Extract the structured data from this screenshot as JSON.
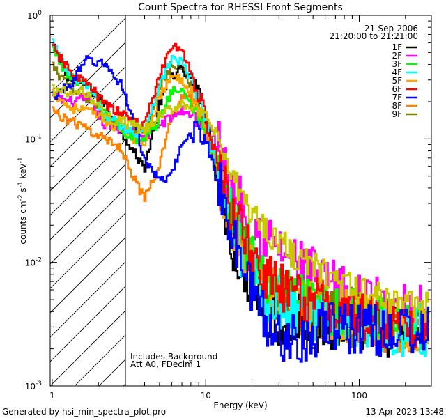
{
  "chart_data": {
    "type": "line",
    "title": "Count Spectra for RHESSI Front Segments",
    "xlabel": "Energy (keV)",
    "ylabel": "counts cm-2 s-1 keV-1",
    "xscale": "log",
    "yscale": "log",
    "xlim": [
      0.97,
      295
    ],
    "ylim": [
      0.001,
      1.0
    ],
    "x_ticks": [
      {
        "value": 1,
        "label": "1"
      },
      {
        "value": 10,
        "label": "10"
      },
      {
        "value": 100,
        "label": "100"
      }
    ],
    "y_ticks": [
      {
        "value": 1,
        "base": "10",
        "exp": "0"
      },
      {
        "value": 0.1,
        "base": "10",
        "exp": "-1"
      },
      {
        "value": 0.01,
        "base": "10",
        "exp": "-2"
      },
      {
        "value": 0.001,
        "base": "10",
        "exp": "-3"
      }
    ],
    "shaded_region": {
      "x_from": 0.97,
      "x_to": 3.0,
      "style": "hatched"
    },
    "legend_header": [
      "21-Sep-2006",
      "21:20:00 to 21:21:00"
    ],
    "series": [
      {
        "name": "1F",
        "color": "#000000",
        "values": [
          0.58,
          0.3,
          0.27,
          0.19,
          0.12,
          0.078,
          0.058,
          0.19,
          0.33,
          0.36,
          0.3,
          0.23,
          0.15,
          0.05,
          0.014,
          0.0065,
          0.004,
          0.003,
          0.0035,
          0.003,
          0.003,
          0.003,
          0.0028,
          0.0028
        ]
      },
      {
        "name": "2F",
        "color": "#ff00ff",
        "values": [
          0.22,
          0.2,
          0.21,
          0.13,
          0.12,
          0.11,
          0.1,
          0.13,
          0.15,
          0.17,
          0.16,
          0.14,
          0.13,
          0.09,
          0.04,
          0.022,
          0.016,
          0.012,
          0.0095,
          0.0075,
          0.006,
          0.005,
          0.0045,
          0.004
        ]
      },
      {
        "name": "3F",
        "color": "#00ff00",
        "values": [
          0.55,
          0.31,
          0.28,
          0.17,
          0.12,
          0.1,
          0.095,
          0.14,
          0.25,
          0.24,
          0.2,
          0.15,
          0.11,
          0.06,
          0.022,
          0.011,
          0.007,
          0.0055,
          0.005,
          0.0042,
          0.004,
          0.0036,
          0.0034,
          0.0032
        ]
      },
      {
        "name": "4F",
        "color": "#00ffff",
        "values": [
          0.63,
          0.32,
          0.27,
          0.16,
          0.13,
          0.11,
          0.12,
          0.27,
          0.45,
          0.42,
          0.3,
          0.21,
          0.14,
          0.055,
          0.018,
          0.0085,
          0.0055,
          0.0045,
          0.004,
          0.0036,
          0.0034,
          0.0032,
          0.003,
          0.0028
        ]
      },
      {
        "name": "5F",
        "color": "#ffa500",
        "values": [
          0.24,
          0.18,
          0.17,
          0.14,
          0.12,
          0.1,
          0.095,
          0.22,
          0.32,
          0.3,
          0.25,
          0.18,
          0.12,
          0.055,
          0.02,
          0.01,
          0.0065,
          0.0052,
          0.0046,
          0.0042,
          0.0038,
          0.0034,
          0.0031,
          0.0029
        ]
      },
      {
        "name": "6F",
        "color": "#ff0000",
        "values": [
          0.56,
          0.35,
          0.28,
          0.19,
          0.16,
          0.14,
          0.13,
          0.32,
          0.57,
          0.52,
          0.35,
          0.23,
          0.15,
          0.062,
          0.024,
          0.012,
          0.0075,
          0.0058,
          0.005,
          0.0045,
          0.004,
          0.0036,
          0.0033,
          0.0031
        ]
      },
      {
        "name": "7F",
        "color": "#0000ff",
        "values": [
          0.22,
          0.27,
          0.44,
          0.4,
          0.28,
          0.14,
          0.07,
          0.045,
          0.05,
          0.09,
          0.11,
          0.12,
          0.1,
          0.048,
          0.015,
          0.006,
          0.0032,
          0.0025,
          0.0025,
          0.0028,
          0.003,
          0.003,
          0.0028,
          0.0028
        ]
      },
      {
        "name": "8F",
        "color": "#ff8000",
        "values": [
          0.17,
          0.14,
          0.12,
          0.1,
          0.085,
          0.05,
          0.032,
          0.06,
          0.15,
          0.23,
          0.22,
          0.16,
          0.12,
          0.05,
          0.018,
          0.009,
          0.006,
          0.0048,
          0.0042,
          0.004,
          0.0036,
          0.0033,
          0.0031,
          0.0029
        ]
      },
      {
        "name": "9F",
        "color": "#808000",
        "values": [
          0.39,
          0.26,
          0.21,
          0.15,
          0.13,
          0.12,
          0.11,
          0.26,
          0.4,
          0.38,
          0.27,
          0.19,
          0.13,
          0.058,
          0.02,
          0.01,
          0.0065,
          0.005,
          0.0045,
          0.004,
          0.0036,
          0.0033,
          0.0031,
          0.0029
        ]
      }
    ],
    "x": [
      1.0,
      1.3,
      1.7,
      2.2,
      2.8,
      3.4,
      4.0,
      5.0,
      6.0,
      7.0,
      8.0,
      9.0,
      10.0,
      12.0,
      15.0,
      20.0,
      25.0,
      32.0,
      40.0,
      55.0,
      75.0,
      100.0,
      150.0,
      250.0
    ]
  },
  "annotations": {
    "notes": [
      "Includes Background",
      "Att A0, FDecim 1"
    ],
    "footer_left": "Generated by hsi_min_spectra_plot.pro",
    "footer_right": "13-Apr-2023 13:48"
  },
  "extra_series_color": "#c8c800"
}
